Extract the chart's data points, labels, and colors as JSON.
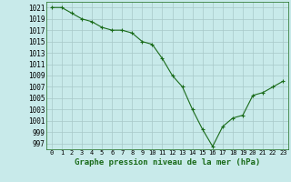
{
  "x": [
    0,
    1,
    2,
    3,
    4,
    5,
    6,
    7,
    8,
    9,
    10,
    11,
    12,
    13,
    14,
    15,
    16,
    17,
    18,
    19,
    20,
    21,
    22,
    23
  ],
  "y": [
    1021,
    1021,
    1020,
    1019,
    1018.5,
    1017.5,
    1017,
    1017,
    1016.5,
    1015,
    1014.5,
    1012,
    1009,
    1007,
    1003,
    999.5,
    996.5,
    1000,
    1001.5,
    1002,
    1005.5,
    1006,
    1007,
    1008
  ],
  "line_color": "#1a6b1a",
  "marker": "+",
  "background_color": "#c8eaea",
  "grid_color": "#a8c8c8",
  "xlabel": "Graphe pression niveau de la mer (hPa)",
  "xlabel_fontsize": 6.5,
  "ylim": [
    996,
    1022
  ],
  "xlim": [
    -0.5,
    23.5
  ],
  "xtick_fontsize": 5,
  "ytick_fontsize": 5.5
}
